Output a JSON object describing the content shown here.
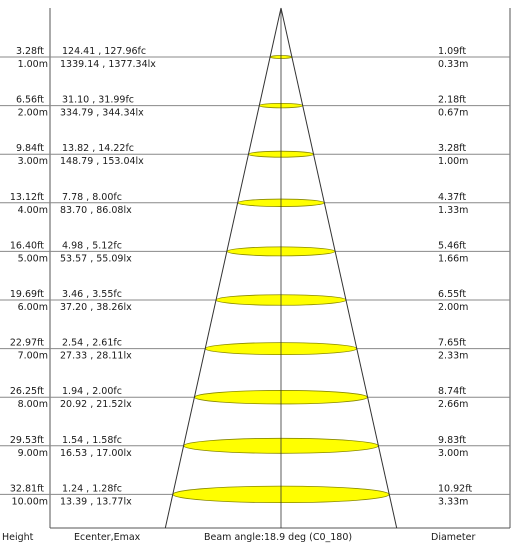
{
  "footer": {
    "height_label": "Height",
    "ecenter_label": "Ecenter,Emax",
    "beam_label": "Beam angle:18.9 deg (C0_180)",
    "diameter_label": "Diameter"
  },
  "rows": [
    {
      "height_ft": "3.28ft",
      "height_m": "1.00m",
      "fc": "124.41 , 127.96fc",
      "lx": "1339.14 , 1377.34lx",
      "diam_ft": "1.09ft",
      "diam_m": "0.33m",
      "diameter_m": 0.33
    },
    {
      "height_ft": "6.56ft",
      "height_m": "2.00m",
      "fc": "31.10 , 31.99fc",
      "lx": "334.79 , 344.34lx",
      "diam_ft": "2.18ft",
      "diam_m": "0.67m",
      "diameter_m": 0.67
    },
    {
      "height_ft": "9.84ft",
      "height_m": "3.00m",
      "fc": "13.82 , 14.22fc",
      "lx": "148.79 , 153.04lx",
      "diam_ft": "3.28ft",
      "diam_m": "1.00m",
      "diameter_m": 1.0
    },
    {
      "height_ft": "13.12ft",
      "height_m": "4.00m",
      "fc": "7.78 , 8.00fc",
      "lx": "83.70 , 86.08lx",
      "diam_ft": "4.37ft",
      "diam_m": "1.33m",
      "diameter_m": 1.33
    },
    {
      "height_ft": "16.40ft",
      "height_m": "5.00m",
      "fc": "4.98 , 5.12fc",
      "lx": "53.57 , 55.09lx",
      "diam_ft": "5.46ft",
      "diam_m": "1.66m",
      "diameter_m": 1.66
    },
    {
      "height_ft": "19.69ft",
      "height_m": "6.00m",
      "fc": "3.46 , 3.55fc",
      "lx": "37.20 , 38.26lx",
      "diam_ft": "6.55ft",
      "diam_m": "2.00m",
      "diameter_m": 2.0
    },
    {
      "height_ft": "22.97ft",
      "height_m": "7.00m",
      "fc": "2.54 , 2.61fc",
      "lx": "27.33 , 28.11lx",
      "diam_ft": "7.65ft",
      "diam_m": "2.33m",
      "diameter_m": 2.33
    },
    {
      "height_ft": "26.25ft",
      "height_m": "8.00m",
      "fc": "1.94 , 2.00fc",
      "lx": "20.92 , 21.52lx",
      "diam_ft": "8.74ft",
      "diam_m": "2.66m",
      "diameter_m": 2.66
    },
    {
      "height_ft": "29.53ft",
      "height_m": "9.00m",
      "fc": "1.54 , 1.58fc",
      "lx": "16.53 , 17.00lx",
      "diam_ft": "9.83ft",
      "diam_m": "3.00m",
      "diameter_m": 3.0
    },
    {
      "height_ft": "32.81ft",
      "height_m": "10.00m",
      "fc": "1.24 , 1.28fc",
      "lx": "13.39 , 13.77lx",
      "diam_ft": "10.92ft",
      "diam_m": "3.33m",
      "diameter_m": 3.33
    }
  ],
  "colors": {
    "spot_fill": "#ffff00",
    "spot_stroke": "#8a8a00",
    "line": "#333333",
    "row_line": "#888888",
    "text": "#1a1a1a"
  }
}
